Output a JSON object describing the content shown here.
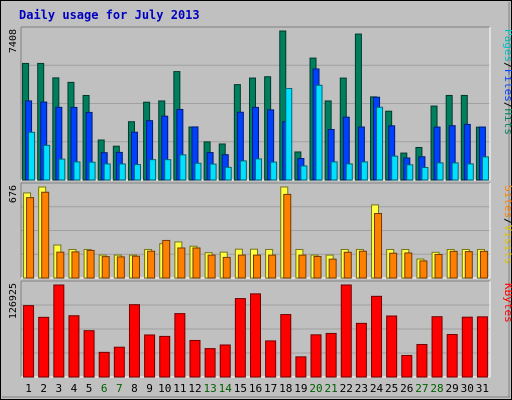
{
  "chart_data": {
    "type": "bar",
    "title": "Daily usage for July 2013",
    "categories": [
      "1",
      "2",
      "3",
      "4",
      "5",
      "6",
      "7",
      "8",
      "9",
      "10",
      "11",
      "12",
      "13",
      "14",
      "15",
      "16",
      "17",
      "18",
      "19",
      "20",
      "21",
      "22",
      "23",
      "24",
      "25",
      "26",
      "27",
      "28",
      "29",
      "30",
      "31"
    ],
    "weekend_days": [
      "6",
      "7",
      "13",
      "14",
      "20",
      "21",
      "27",
      "28"
    ],
    "colors": {
      "hits": "#007f5f",
      "files": "#0040ff",
      "pages": "#00e0ff",
      "visits": "#ffff40",
      "sites": "#ff8000",
      "kbytes": "#ff0000",
      "weekday_label": "#000000",
      "weekend_label": "#006000"
    },
    "panels": [
      {
        "id": "top",
        "max_label": "7408",
        "ymax": 7408,
        "legend": [
          "Pages",
          "/",
          "Files",
          "/",
          "Hits"
        ],
        "legend_colors": [
          "#00c0c0",
          "#000000",
          "#0040ff",
          "#000000",
          "#008060"
        ],
        "series": [
          {
            "name": "Hits",
            "color": "#007f5f",
            "values": [
              5795,
              5795,
              5078,
              4854,
              4202,
              1988,
              1681,
              2898,
              3868,
              3931,
              5390,
              2634,
              1896,
              1791,
              4742,
              5068,
              5134,
              7408,
              1394,
              6061,
              3931,
              5067,
              7256,
              4133,
              3420,
              1339,
              1617,
              3675,
              4203,
              4203,
              2626
            ]
          },
          {
            "name": "Files",
            "color": "#0040ff",
            "values": [
              3932,
              3875,
              3612,
              3609,
              3360,
              1358,
              1373,
              2375,
              2951,
              3173,
              3508,
              2639,
              1363,
              1258,
              3370,
              3608,
              3487,
              2900,
              1067,
              5521,
              2511,
              3124,
              2634,
              4115,
              2694,
              1095,
              1156,
              2631,
              2700,
              2763,
              2632
            ]
          },
          {
            "name": "Pages",
            "color": "#00e0ff",
            "values": [
              2372,
              1722,
              1037,
              900,
              885,
              800,
              800,
              767,
              1011,
              1011,
              1249,
              830,
              791,
              629,
              950,
              1050,
              890,
              4550,
              700,
              4708,
              900,
              800,
              900,
              3614,
              1185,
              755,
              623,
              850,
              850,
              800,
              1149
            ]
          }
        ]
      },
      {
        "id": "middle",
        "max_label": "676",
        "ymax": 676,
        "legend": [
          "Sites",
          "/",
          "Visits"
        ],
        "legend_colors": [
          "#ff8000",
          "#000000",
          "#e0c000"
        ],
        "series": [
          {
            "name": "Visits",
            "color": "#ffff40",
            "values": [
              632,
              676,
              245,
              212,
              212,
              170,
              170,
              170,
              212,
              255,
              268,
              236,
              188,
              192,
              214,
              214,
              212,
              676,
              212,
              170,
              170,
              212,
              212,
              543,
              212,
              212,
              141,
              191,
              212,
              212,
              212
            ]
          },
          {
            "name": "Sites",
            "color": "#ff8000",
            "values": [
              597,
              637,
              192,
              194,
              205,
              159,
              157,
              162,
              199,
              279,
              223,
              223,
              170,
              153,
              170,
              170,
              170,
              621,
              170,
              160,
              140,
              191,
              199,
              479,
              184,
              186,
              127,
              175,
              198,
              196,
              198
            ]
          }
        ]
      },
      {
        "id": "bottom",
        "max_label": "126925",
        "ymax": 126925,
        "legend": [
          "KBytes"
        ],
        "legend_colors": [
          "#ff0000"
        ],
        "series": [
          {
            "name": "KBytes",
            "color": "#ff0000",
            "values": [
              98476,
              82318,
              126925,
              84508,
              63930,
              34014,
              41100,
              99800,
              58000,
              56000,
              87440,
              50400,
              39200,
              44200,
              108200,
              114700,
              49800,
              86144,
              27800,
              58200,
              60100,
              126925,
              74000,
              111300,
              84130,
              29700,
              44856,
              83200,
              58600,
              82500,
              83000
            ]
          }
        ]
      }
    ]
  }
}
